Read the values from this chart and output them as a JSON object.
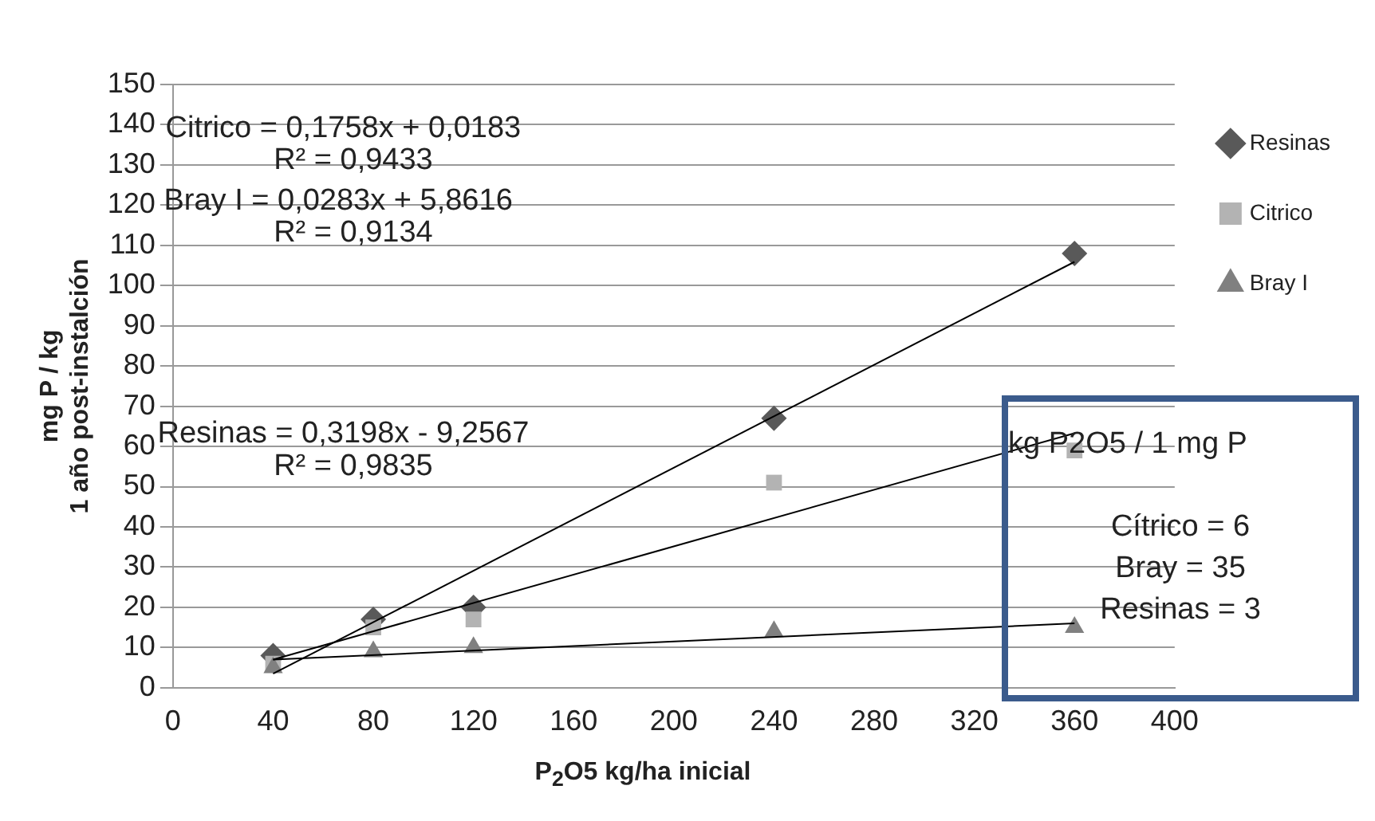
{
  "chart_data": {
    "type": "scatter",
    "xlabel": "P$_{2}$O5 kg/ha     inicial",
    "ylabel": "mg P / kg\n1 año post-instalción",
    "xlim": [
      0,
      400
    ],
    "xticks": [
      0,
      40,
      80,
      120,
      160,
      200,
      240,
      280,
      320,
      360,
      400
    ],
    "ylim": [
      0,
      150
    ],
    "yticks": [
      0,
      10,
      20,
      30,
      40,
      50,
      60,
      70,
      80,
      90,
      100,
      110,
      120,
      130,
      140,
      150
    ],
    "grid": "y",
    "legend": "top right",
    "series": [
      {
        "name": "Resinas",
        "color": "#595959",
        "marker": "diamond",
        "x": [
          40,
          80,
          120,
          240,
          360
        ],
        "values": [
          8,
          17,
          20,
          67,
          108
        ]
      },
      {
        "name": "Citrico",
        "color": "#b3b3b3",
        "marker": "square",
        "x": [
          40,
          80,
          120,
          240,
          360
        ],
        "values": [
          6,
          15,
          17,
          51,
          59
        ]
      },
      {
        "name": "Bray I",
        "color": "#808080",
        "marker": "triangle",
        "x": [
          40,
          80,
          120,
          240,
          360
        ],
        "values": [
          5,
          9,
          10,
          14,
          15
        ]
      },
      {
        "type": "line",
        "color": "#000000",
        "marker": "none",
        "x": [
          40,
          360
        ],
        "values": [
          3.5,
          105.9
        ]
      },
      {
        "type": "line",
        "color": "#000000",
        "marker": "none",
        "x": [
          40,
          360
        ],
        "values": [
          7,
          63.3
        ]
      },
      {
        "type": "line",
        "color": "#000000",
        "marker": "none",
        "x": [
          40,
          360
        ],
        "values": [
          7,
          16
        ]
      }
    ],
    "annotations": [
      "Citrico = 0,1758x + 0,0183",
      "R² = 0,9433",
      "Bray I = 0,0283x + 5,8616",
      "R² = 0,9134",
      "Resinas = 0,3198x - 9,2567",
      "R² = 0,9835",
      "kg P2O5 / 1 mg P",
      "Cítrico = 6",
      "Bray = 35",
      "Resinas  =  3"
    ]
  }
}
